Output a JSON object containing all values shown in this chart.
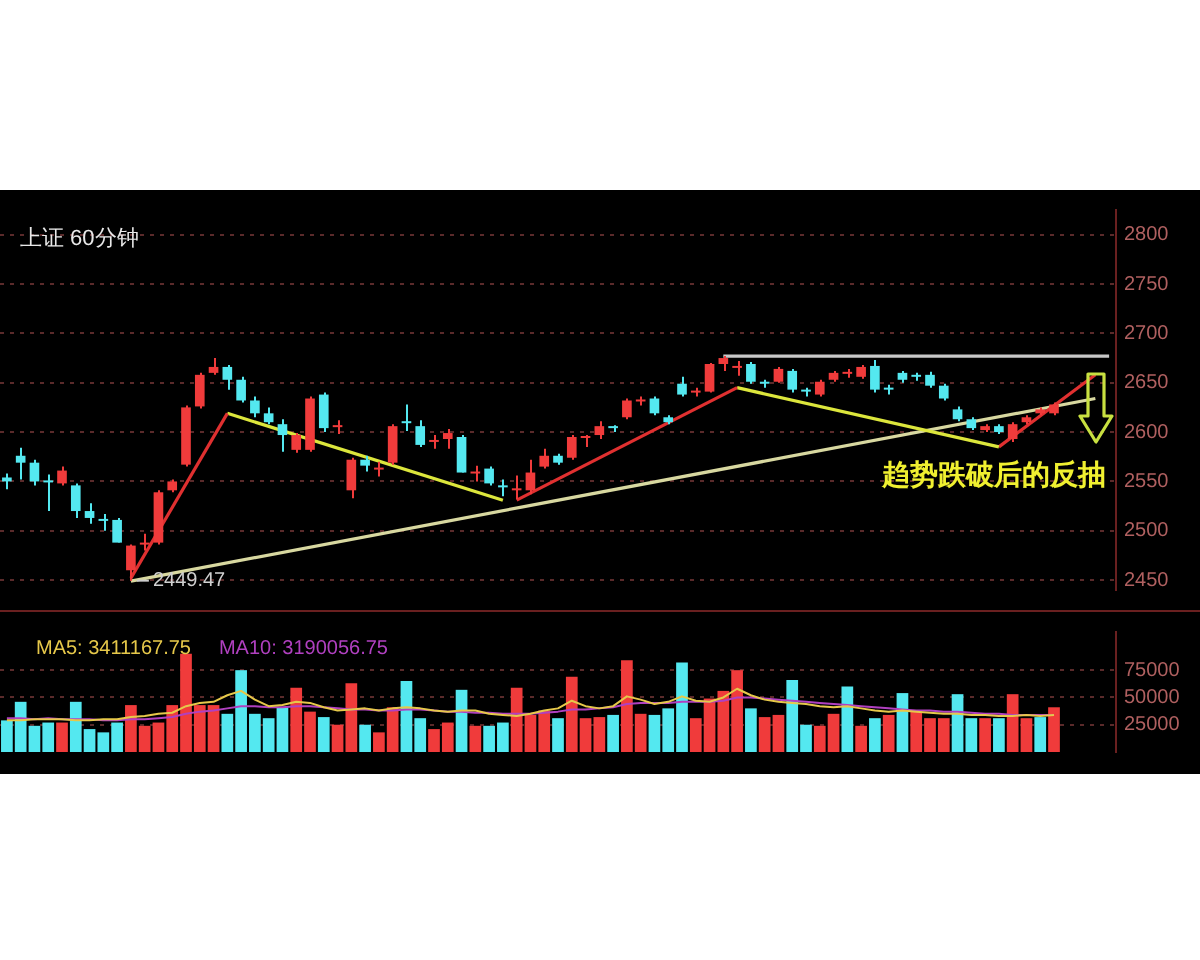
{
  "chart_data": [
    {
      "type": "candlestick",
      "title": "上证 60分钟",
      "categories": [
        null,
        null,
        null,
        null,
        null,
        null,
        null,
        null,
        null,
        null,
        null,
        null,
        null,
        null,
        null,
        null,
        null,
        null,
        null,
        null,
        null,
        null,
        null,
        null,
        null,
        null,
        null,
        null,
        null,
        null,
        null,
        null,
        null,
        null,
        null,
        null,
        null,
        null,
        null,
        null,
        null,
        null,
        null,
        null,
        null,
        null,
        null,
        null,
        null,
        null,
        null,
        null,
        null,
        null,
        null,
        null,
        null,
        null,
        null,
        null,
        null,
        null,
        null,
        null,
        null,
        null,
        null,
        null,
        null,
        null,
        null,
        null,
        null,
        null,
        null,
        null,
        null,
        null,
        null,
        null,
        null
      ],
      "ohlc": [
        [
          2554,
          2558,
          2542,
          2550
        ],
        [
          2576,
          2584,
          2552,
          2569
        ],
        [
          2569,
          2572,
          2546,
          2550
        ],
        [
          2551,
          2557,
          2520,
          2549
        ],
        [
          2548,
          2565,
          2546,
          2561
        ],
        [
          2546,
          2548,
          2513,
          2520
        ],
        [
          2520,
          2528,
          2507,
          2513
        ],
        [
          2512,
          2517,
          2500,
          2510
        ],
        [
          2511,
          2513,
          2488,
          2488
        ],
        [
          2460,
          2486,
          2449.47,
          2485
        ],
        [
          2486,
          2497,
          2480,
          2488
        ],
        [
          2488,
          2541,
          2486,
          2539
        ],
        [
          2541,
          2552,
          2539,
          2550
        ],
        [
          2567,
          2627,
          2565,
          2625
        ],
        [
          2626,
          2660,
          2624,
          2658
        ],
        [
          2660,
          2675,
          2658,
          2666
        ],
        [
          2666,
          2668,
          2643,
          2653
        ],
        [
          2653,
          2656,
          2630,
          2632
        ],
        [
          2632,
          2636,
          2615,
          2619
        ],
        [
          2619,
          2625,
          2608,
          2610
        ],
        [
          2608,
          2613,
          2580,
          2597
        ],
        [
          2582,
          2599,
          2579,
          2597
        ],
        [
          2582,
          2636,
          2580,
          2634
        ],
        [
          2638,
          2640,
          2600,
          2604
        ],
        [
          2605,
          2612,
          2598,
          2606
        ],
        [
          2541,
          2574,
          2533,
          2572
        ],
        [
          2572,
          2576,
          2560,
          2566
        ],
        [
          2562,
          2570,
          2555,
          2563
        ],
        [
          2569,
          2608,
          2567,
          2606
        ],
        [
          2611,
          2628,
          2601,
          2609
        ],
        [
          2606,
          2612,
          2585,
          2587
        ],
        [
          2590,
          2597,
          2583,
          2591
        ],
        [
          2593,
          2603,
          2583,
          2599
        ],
        [
          2595,
          2597,
          2559,
          2559
        ],
        [
          2558,
          2566,
          2550,
          2559
        ],
        [
          2563,
          2565,
          2546,
          2548
        ],
        [
          2545,
          2552,
          2535,
          2544
        ],
        [
          2541,
          2556,
          2532,
          2542
        ],
        [
          2541,
          2572,
          2537,
          2559
        ],
        [
          2565,
          2583,
          2563,
          2576
        ],
        [
          2576,
          2578,
          2567,
          2569
        ],
        [
          2574,
          2597,
          2572,
          2595
        ],
        [
          2594,
          2597,
          2585,
          2595
        ],
        [
          2597,
          2611,
          2593,
          2606
        ],
        [
          2605,
          2607,
          2600,
          2604
        ],
        [
          2615,
          2634,
          2613,
          2632
        ],
        [
          2631,
          2636,
          2627,
          2632
        ],
        [
          2634,
          2636,
          2617,
          2619
        ],
        [
          2615,
          2617,
          2608,
          2610
        ],
        [
          2649,
          2656,
          2636,
          2638
        ],
        [
          2640,
          2645,
          2636,
          2641
        ],
        [
          2641,
          2670,
          2640,
          2669
        ],
        [
          2669,
          2677,
          2662,
          2675
        ],
        [
          2665,
          2672,
          2657,
          2666
        ],
        [
          2669,
          2671,
          2649,
          2651
        ],
        [
          2650,
          2653,
          2645,
          2649
        ],
        [
          2651,
          2666,
          2650,
          2664
        ],
        [
          2662,
          2664,
          2640,
          2643
        ],
        [
          2642,
          2645,
          2636,
          2641
        ],
        [
          2638,
          2653,
          2636,
          2651
        ],
        [
          2653,
          2662,
          2651,
          2660
        ],
        [
          2659,
          2664,
          2655,
          2660
        ],
        [
          2656,
          2668,
          2654,
          2666
        ],
        [
          2667,
          2673,
          2640,
          2643
        ],
        [
          2644,
          2648,
          2638,
          2643
        ],
        [
          2660,
          2662,
          2650,
          2653
        ],
        [
          2657,
          2660,
          2652,
          2656
        ],
        [
          2658,
          2661,
          2645,
          2647
        ],
        [
          2647,
          2649,
          2632,
          2634
        ],
        [
          2623,
          2626,
          2611,
          2613
        ],
        [
          2613,
          2615,
          2602,
          2604
        ],
        [
          2602,
          2608,
          2600,
          2606
        ],
        [
          2606,
          2608,
          2598,
          2600
        ],
        [
          2593,
          2610,
          2590,
          2608
        ],
        [
          2610,
          2617,
          2608,
          2615
        ],
        [
          2619,
          2625,
          2617,
          2623
        ],
        [
          2619,
          2630,
          2617,
          2628
        ],
        null,
        null,
        null,
        null
      ],
      "colors": [
        "#54e8f0",
        "#54e8f0",
        "#54e8f0",
        "#54e8f0",
        "#f03b3b",
        "#54e8f0",
        "#54e8f0",
        "#54e8f0",
        "#54e8f0",
        "#f03b3b",
        "#f03b3b",
        "#f03b3b",
        "#f03b3b",
        "#f03b3b",
        "#f03b3b",
        "#f03b3b",
        "#54e8f0",
        "#54e8f0",
        "#54e8f0",
        "#54e8f0",
        "#54e8f0",
        "#f03b3b",
        "#f03b3b",
        "#54e8f0",
        "#f03b3b",
        "#f03b3b",
        "#54e8f0",
        "#f03b3b",
        "#f03b3b",
        "#54e8f0",
        "#54e8f0",
        "#f03b3b",
        "#f03b3b",
        "#54e8f0",
        "#f03b3b",
        "#54e8f0",
        "#54e8f0",
        "#f03b3b",
        "#f03b3b",
        "#f03b3b",
        "#54e8f0",
        "#f03b3b",
        "#f03b3b",
        "#f03b3b",
        "#54e8f0",
        "#f03b3b",
        "#f03b3b",
        "#54e8f0",
        "#54e8f0",
        "#54e8f0",
        "#f03b3b",
        "#f03b3b",
        "#f03b3b",
        "#f03b3b",
        "#54e8f0",
        "#54e8f0",
        "#f03b3b",
        "#54e8f0",
        "#54e8f0",
        "#f03b3b",
        "#f03b3b",
        "#f03b3b",
        "#f03b3b",
        "#54e8f0",
        "#54e8f0",
        "#54e8f0",
        "#54e8f0",
        "#54e8f0",
        "#54e8f0",
        "#54e8f0",
        "#54e8f0",
        "#f03b3b",
        "#54e8f0",
        "#f03b3b",
        "#f03b3b",
        "#f03b3b",
        "#f03b3b",
        null,
        null,
        null,
        null
      ],
      "series": [
        {
          "type": "line",
          "color": "#e03030",
          "values": [
            null,
            null,
            null,
            null,
            null,
            null,
            null,
            null,
            null,
            2452,
            null,
            null,
            null,
            null,
            null,
            null,
            2619,
            null,
            null,
            null,
            null,
            null,
            null,
            null,
            null,
            null,
            null,
            null,
            null,
            null,
            null,
            null,
            null,
            null,
            null,
            null,
            null,
            null,
            null,
            null,
            null,
            null,
            null,
            null,
            null,
            null,
            null,
            null,
            null,
            null,
            null,
            null,
            null,
            null,
            null,
            null,
            null,
            null,
            null,
            null,
            null,
            null,
            null,
            null,
            null,
            null,
            null,
            null,
            null,
            null,
            null,
            null,
            null,
            null,
            null,
            null,
            null,
            null,
            null,
            null,
            null
          ]
        },
        {
          "type": "line",
          "color": "#dce63c",
          "values": [
            null,
            null,
            null,
            null,
            null,
            null,
            null,
            null,
            null,
            null,
            null,
            null,
            null,
            null,
            null,
            null,
            2619,
            null,
            null,
            null,
            null,
            null,
            null,
            null,
            null,
            null,
            null,
            null,
            null,
            null,
            null,
            null,
            null,
            null,
            null,
            null,
            2531,
            null,
            null,
            null,
            null,
            null,
            null,
            null,
            null,
            null,
            null,
            null,
            null,
            null,
            null,
            null,
            null,
            null,
            null,
            null,
            null,
            null,
            null,
            null,
            null,
            null,
            null,
            null,
            null,
            null,
            null,
            null,
            null,
            null,
            null,
            null,
            null,
            null,
            null,
            null,
            null,
            null,
            null,
            null,
            null
          ]
        },
        {
          "type": "line",
          "color": "#e03030",
          "values": [
            null,
            null,
            null,
            null,
            null,
            null,
            null,
            null,
            null,
            null,
            null,
            null,
            null,
            null,
            null,
            null,
            null,
            null,
            null,
            null,
            null,
            null,
            null,
            null,
            null,
            null,
            null,
            null,
            null,
            null,
            null,
            null,
            null,
            null,
            null,
            null,
            null,
            2531,
            null,
            null,
            null,
            null,
            null,
            null,
            null,
            null,
            null,
            null,
            null,
            null,
            null,
            null,
            null,
            2645,
            null,
            null,
            null,
            null,
            null,
            null,
            null,
            null,
            null,
            null,
            null,
            null,
            null,
            null,
            null,
            null,
            null,
            null,
            null,
            null,
            null,
            null,
            null,
            null,
            null,
            null,
            null
          ]
        },
        {
          "type": "line",
          "color": "#dce63c",
          "values": [
            null,
            null,
            null,
            null,
            null,
            null,
            null,
            null,
            null,
            null,
            null,
            null,
            null,
            null,
            null,
            null,
            null,
            null,
            null,
            null,
            null,
            null,
            null,
            null,
            null,
            null,
            null,
            null,
            null,
            null,
            null,
            null,
            null,
            null,
            null,
            null,
            null,
            null,
            null,
            null,
            null,
            null,
            null,
            null,
            null,
            null,
            null,
            null,
            null,
            null,
            null,
            null,
            null,
            2645,
            null,
            null,
            null,
            null,
            null,
            null,
            null,
            null,
            null,
            null,
            null,
            null,
            null,
            null,
            null,
            null,
            null,
            null,
            2585,
            null,
            null,
            null,
            null,
            null,
            null,
            null,
            null
          ]
        },
        {
          "type": "line",
          "color": "#e03030",
          "values": [
            null,
            null,
            null,
            null,
            null,
            null,
            null,
            null,
            null,
            null,
            null,
            null,
            null,
            null,
            null,
            null,
            null,
            null,
            null,
            null,
            null,
            null,
            null,
            null,
            null,
            null,
            null,
            null,
            null,
            null,
            null,
            null,
            null,
            null,
            null,
            null,
            null,
            null,
            null,
            null,
            null,
            null,
            null,
            null,
            null,
            null,
            null,
            null,
            null,
            null,
            null,
            null,
            null,
            null,
            null,
            null,
            null,
            null,
            null,
            null,
            null,
            null,
            null,
            null,
            null,
            null,
            null,
            null,
            null,
            null,
            null,
            null,
            2585,
            null,
            null,
            null,
            null,
            null,
            null,
            2658,
            null
          ]
        },
        {
          "type": "line",
          "color": "#d8d8a0",
          "values": [
            null,
            null,
            null,
            null,
            null,
            null,
            null,
            null,
            null,
            2449,
            null,
            null,
            null,
            null,
            null,
            null,
            null,
            null,
            null,
            null,
            null,
            null,
            null,
            null,
            null,
            null,
            null,
            null,
            null,
            null,
            null,
            null,
            null,
            null,
            null,
            null,
            null,
            null,
            null,
            null,
            null,
            null,
            null,
            null,
            null,
            null,
            null,
            null,
            null,
            null,
            null,
            null,
            null,
            null,
            null,
            null,
            null,
            null,
            null,
            null,
            null,
            null,
            null,
            null,
            null,
            null,
            null,
            null,
            null,
            null,
            null,
            null,
            null,
            null,
            null,
            null,
            null,
            null,
            null,
            2634,
            null
          ]
        },
        {
          "type": "line",
          "color": "#c8c8c8",
          "values": [
            null,
            null,
            null,
            null,
            null,
            null,
            null,
            null,
            null,
            null,
            null,
            null,
            null,
            null,
            null,
            null,
            null,
            null,
            null,
            null,
            null,
            null,
            null,
            null,
            null,
            null,
            null,
            null,
            null,
            null,
            null,
            null,
            null,
            null,
            null,
            null,
            null,
            null,
            null,
            null,
            null,
            null,
            null,
            null,
            null,
            null,
            null,
            null,
            null,
            null,
            null,
            null,
            2677,
            null,
            null,
            null,
            null,
            null,
            null,
            null,
            null,
            null,
            null,
            null,
            null,
            null,
            null,
            null,
            null,
            null,
            null,
            null,
            null,
            null,
            null,
            null,
            null,
            null,
            null,
            null,
            2677
          ]
        }
      ],
      "annotations": [
        {
          "text": "2449.47",
          "y": 2449.47
        },
        "趋势跌破后的反抽"
      ],
      "ylim": [
        2440,
        2825
      ],
      "yticks": [
        2450,
        2500,
        2550,
        2600,
        2650,
        2700,
        2750,
        2800
      ],
      "grid": "y",
      "tick_labels": "y"
    },
    {
      "type": "bar",
      "categories": [
        null,
        null,
        null,
        null,
        null,
        null,
        null,
        null,
        null,
        null,
        null,
        null,
        null,
        null,
        null,
        null,
        null,
        null,
        null,
        null,
        null,
        null,
        null,
        null,
        null,
        null,
        null,
        null,
        null,
        null,
        null,
        null,
        null,
        null,
        null,
        null,
        null,
        null,
        null,
        null,
        null,
        null,
        null,
        null,
        null,
        null,
        null,
        null,
        null,
        null,
        null,
        null,
        null,
        null,
        null,
        null,
        null,
        null,
        null,
        null,
        null,
        null,
        null,
        null,
        null,
        null,
        null,
        null,
        null,
        null,
        null,
        null,
        null,
        null,
        null,
        null,
        null,
        null,
        null,
        null,
        null
      ],
      "series": [
        {
          "values": [
            29000,
            46000,
            24000,
            27000,
            27000,
            46000,
            21000,
            18000,
            27000,
            43000,
            24000,
            27000,
            43000,
            90000,
            43000,
            43000,
            35000,
            75000,
            35000,
            31000,
            41000,
            59000,
            37000,
            32000,
            25000,
            63000,
            25000,
            18000,
            41000,
            65000,
            31000,
            21000,
            27000,
            57000,
            24000,
            24000,
            27000,
            59000,
            34000,
            38000,
            31000,
            69000,
            31000,
            32000,
            34000,
            84000,
            35000,
            34000,
            40000,
            82000,
            31000,
            49000,
            56000,
            75000,
            40000,
            32000,
            34000,
            66000,
            25000,
            24000,
            35000,
            60000,
            24000,
            31000,
            34000,
            54000,
            37000,
            31000,
            31000,
            53000,
            31000,
            31000,
            31000,
            53000,
            31000,
            32000,
            41000,
            null,
            null,
            null,
            null
          ],
          "colors": [
            "#54e8f0",
            "#54e8f0",
            "#54e8f0",
            "#54e8f0",
            "#f03b3b",
            "#54e8f0",
            "#54e8f0",
            "#54e8f0",
            "#54e8f0",
            "#f03b3b",
            "#f03b3b",
            "#f03b3b",
            "#f03b3b",
            "#f03b3b",
            "#f03b3b",
            "#f03b3b",
            "#54e8f0",
            "#54e8f0",
            "#54e8f0",
            "#54e8f0",
            "#54e8f0",
            "#f03b3b",
            "#f03b3b",
            "#54e8f0",
            "#f03b3b",
            "#f03b3b",
            "#54e8f0",
            "#f03b3b",
            "#f03b3b",
            "#54e8f0",
            "#54e8f0",
            "#f03b3b",
            "#f03b3b",
            "#54e8f0",
            "#f03b3b",
            "#54e8f0",
            "#54e8f0",
            "#f03b3b",
            "#f03b3b",
            "#f03b3b",
            "#54e8f0",
            "#f03b3b",
            "#f03b3b",
            "#f03b3b",
            "#54e8f0",
            "#f03b3b",
            "#f03b3b",
            "#54e8f0",
            "#54e8f0",
            "#54e8f0",
            "#f03b3b",
            "#f03b3b",
            "#f03b3b",
            "#f03b3b",
            "#54e8f0",
            "#f03b3b",
            "#f03b3b",
            "#54e8f0",
            "#54e8f0",
            "#f03b3b",
            "#f03b3b",
            "#54e8f0",
            "#f03b3b",
            "#54e8f0",
            "#f03b3b",
            "#54e8f0",
            "#f03b3b",
            "#f03b3b",
            "#f03b3b",
            "#54e8f0",
            "#54e8f0",
            "#f03b3b",
            "#54e8f0",
            "#f03b3b",
            "#f03b3b",
            "#54e8f0",
            "#f03b3b",
            null,
            null,
            null,
            null
          ]
        },
        {
          "type": "line",
          "name": "MA5: 3411167.75",
          "color": "#e6c84a",
          "values": [
            29000,
            29000,
            30000,
            30000,
            30000,
            29000,
            29000,
            30000,
            30000,
            32000,
            33000,
            35000,
            36000,
            42000,
            45000,
            46000,
            52000,
            56000,
            48000,
            42000,
            43000,
            46000,
            45000,
            41000,
            38000,
            39000,
            40000,
            38000,
            40000,
            41000,
            40000,
            38000,
            37000,
            38000,
            38000,
            35000,
            34000,
            33000,
            35000,
            38000,
            40000,
            47000,
            42000,
            40000,
            42000,
            51000,
            48000,
            44000,
            46000,
            51000,
            47000,
            46000,
            50000,
            58000,
            52000,
            48000,
            46000,
            45000,
            44000,
            42000,
            41000,
            42000,
            40000,
            38000,
            37000,
            38000,
            37000,
            36000,
            35000,
            35000,
            34000,
            34000,
            33000,
            33000,
            34000,
            33000,
            34000,
            null,
            null,
            null,
            null
          ]
        },
        {
          "type": "line",
          "name": "MA10: 3190056.75",
          "color": "#b040c0",
          "values": [
            31000,
            31000,
            30000,
            31000,
            30000,
            30000,
            30000,
            29000,
            29000,
            30000,
            30000,
            31000,
            32000,
            35000,
            37000,
            38000,
            40000,
            42000,
            42000,
            41000,
            41000,
            42000,
            42000,
            41000,
            40000,
            39000,
            39000,
            38000,
            38000,
            39000,
            39000,
            38000,
            37000,
            37000,
            36000,
            36000,
            35000,
            35000,
            35000,
            36000,
            37000,
            39000,
            39000,
            40000,
            41000,
            44000,
            45000,
            45000,
            45000,
            46000,
            46000,
            46000,
            47000,
            50000,
            50000,
            49000,
            48000,
            47000,
            46000,
            45000,
            44000,
            43000,
            42000,
            41000,
            40000,
            39000,
            38000,
            38000,
            37000,
            37000,
            36000,
            35000,
            35000,
            34000,
            34000,
            34000,
            34000,
            null,
            null,
            null,
            null
          ]
        }
      ],
      "ylim": [
        0,
        110000
      ],
      "yticks": [
        25000,
        50000,
        75000
      ],
      "grid": "y",
      "tick_labels": "y",
      "legend": "top left"
    }
  ]
}
